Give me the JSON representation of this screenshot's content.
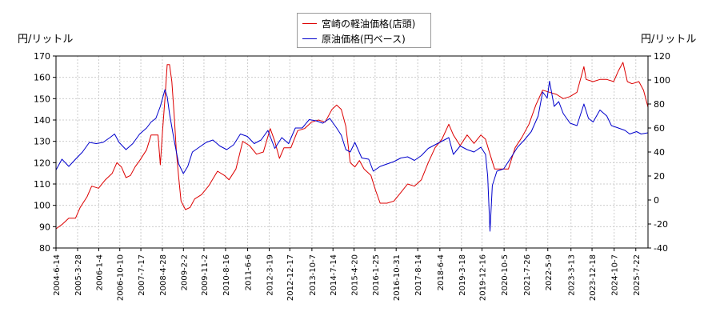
{
  "chart_data": {
    "type": "line",
    "left_unit": "円/リットル",
    "right_unit": "円/リットル",
    "y_left_range": [
      80,
      170
    ],
    "y_left_ticks": [
      "80",
      "90",
      "100",
      "110",
      "120",
      "130",
      "140",
      "150",
      "160",
      "170"
    ],
    "y_right_range": [
      -40,
      120
    ],
    "y_right_ticks": [
      "-40",
      "-20",
      "0",
      "20",
      "40",
      "60",
      "80",
      "100",
      "120"
    ],
    "x_range": [
      "2004-06-14",
      "2025-12-31"
    ],
    "x_tick_labels": [
      "2004-6-14",
      "2005-3-28",
      "2006-1-4",
      "2006-10-10",
      "2007-7-17",
      "2008-4-28",
      "2009-2-2",
      "2009-11-2",
      "2010-8-16",
      "2011-6-6",
      "2012-3-19",
      "2012-12-17",
      "2013-10-7",
      "2014-7-14",
      "2015-4-20",
      "2016-1-25",
      "2016-10-31",
      "2017-8-14",
      "2018-6-4",
      "2019-3-18",
      "2019-12-16",
      "2020-10-5",
      "2021-7-26",
      "2022-5-9",
      "2023-3-13",
      "2023-12-18",
      "2024-10-7",
      "2025-7-22"
    ],
    "grid": true,
    "legend_position": "top-center",
    "series": [
      {
        "name": "宮崎の軽油価格(店頭)",
        "axis": "left",
        "color": "#dd0000",
        "points": [
          [
            "2004-06-14",
            89
          ],
          [
            "2004-09-01",
            91
          ],
          [
            "2004-12-01",
            94
          ],
          [
            "2005-03-01",
            94
          ],
          [
            "2005-05-01",
            99
          ],
          [
            "2005-08-01",
            104
          ],
          [
            "2005-10-01",
            109
          ],
          [
            "2006-01-01",
            108
          ],
          [
            "2006-04-01",
            112
          ],
          [
            "2006-07-01",
            115
          ],
          [
            "2006-09-01",
            120
          ],
          [
            "2006-11-01",
            118
          ],
          [
            "2007-01-01",
            113
          ],
          [
            "2007-03-01",
            114
          ],
          [
            "2007-05-01",
            118
          ],
          [
            "2007-07-01",
            121
          ],
          [
            "2007-10-01",
            126
          ],
          [
            "2007-12-01",
            133
          ],
          [
            "2008-03-01",
            133
          ],
          [
            "2008-04-01",
            119
          ],
          [
            "2008-05-01",
            135
          ],
          [
            "2008-06-01",
            150
          ],
          [
            "2008-07-01",
            166
          ],
          [
            "2008-08-01",
            166
          ],
          [
            "2008-09-01",
            158
          ],
          [
            "2008-10-01",
            143
          ],
          [
            "2008-11-01",
            125
          ],
          [
            "2008-12-01",
            113
          ],
          [
            "2009-01-01",
            102
          ],
          [
            "2009-03-01",
            98
          ],
          [
            "2009-05-01",
            99
          ],
          [
            "2009-07-01",
            103
          ],
          [
            "2009-10-01",
            105
          ],
          [
            "2010-01-01",
            109
          ],
          [
            "2010-05-01",
            116
          ],
          [
            "2010-08-01",
            114
          ],
          [
            "2010-10-01",
            112
          ],
          [
            "2011-01-01",
            117
          ],
          [
            "2011-04-01",
            130
          ],
          [
            "2011-07-01",
            128
          ],
          [
            "2011-10-01",
            124
          ],
          [
            "2012-01-01",
            125
          ],
          [
            "2012-04-01",
            136
          ],
          [
            "2012-06-01",
            130
          ],
          [
            "2012-08-01",
            122
          ],
          [
            "2012-10-01",
            127
          ],
          [
            "2013-01-01",
            127
          ],
          [
            "2013-04-01",
            135
          ],
          [
            "2013-07-01",
            136
          ],
          [
            "2013-10-01",
            139
          ],
          [
            "2014-01-01",
            140
          ],
          [
            "2014-04-01",
            139
          ],
          [
            "2014-07-01",
            145
          ],
          [
            "2014-09-01",
            147
          ],
          [
            "2014-11-01",
            145
          ],
          [
            "2015-01-01",
            137
          ],
          [
            "2015-03-01",
            120
          ],
          [
            "2015-05-01",
            118
          ],
          [
            "2015-07-01",
            121
          ],
          [
            "2015-09-01",
            117
          ],
          [
            "2015-12-01",
            114
          ],
          [
            "2016-02-01",
            107
          ],
          [
            "2016-04-01",
            101
          ],
          [
            "2016-07-01",
            101
          ],
          [
            "2016-10-01",
            102
          ],
          [
            "2017-01-01",
            106
          ],
          [
            "2017-04-01",
            110
          ],
          [
            "2017-07-01",
            109
          ],
          [
            "2017-10-01",
            112
          ],
          [
            "2018-01-01",
            120
          ],
          [
            "2018-04-01",
            127
          ],
          [
            "2018-07-01",
            131
          ],
          [
            "2018-10-01",
            138
          ],
          [
            "2018-12-01",
            133
          ],
          [
            "2019-03-01",
            128
          ],
          [
            "2019-06-01",
            133
          ],
          [
            "2019-09-01",
            129
          ],
          [
            "2019-12-01",
            133
          ],
          [
            "2020-02-01",
            131
          ],
          [
            "2020-04-01",
            124
          ],
          [
            "2020-06-01",
            117
          ],
          [
            "2020-09-01",
            117
          ],
          [
            "2020-12-01",
            117
          ],
          [
            "2021-03-01",
            127
          ],
          [
            "2021-06-01",
            132
          ],
          [
            "2021-09-01",
            138
          ],
          [
            "2021-12-01",
            147
          ],
          [
            "2022-03-01",
            154
          ],
          [
            "2022-06-01",
            153
          ],
          [
            "2022-09-01",
            152
          ],
          [
            "2022-12-01",
            150
          ],
          [
            "2023-03-01",
            151
          ],
          [
            "2023-06-01",
            153
          ],
          [
            "2023-09-01",
            165
          ],
          [
            "2023-10-01",
            159
          ],
          [
            "2024-01-01",
            158
          ],
          [
            "2024-04-01",
            159
          ],
          [
            "2024-07-01",
            159
          ],
          [
            "2024-10-01",
            158
          ],
          [
            "2024-12-01",
            163
          ],
          [
            "2025-02-01",
            167
          ],
          [
            "2025-04-01",
            158
          ],
          [
            "2025-06-01",
            157
          ],
          [
            "2025-09-01",
            158
          ],
          [
            "2025-11-01",
            154
          ],
          [
            "2025-12-31",
            146
          ]
        ]
      },
      {
        "name": "原油価格(円ベース)",
        "axis": "right",
        "color": "#0000cc",
        "points": [
          [
            "2004-06-14",
            25
          ],
          [
            "2004-09-01",
            34
          ],
          [
            "2004-12-01",
            28
          ],
          [
            "2005-03-01",
            34
          ],
          [
            "2005-06-01",
            40
          ],
          [
            "2005-09-01",
            48
          ],
          [
            "2005-12-01",
            47
          ],
          [
            "2006-03-01",
            48
          ],
          [
            "2006-06-01",
            52
          ],
          [
            "2006-08-01",
            55
          ],
          [
            "2006-10-01",
            48
          ],
          [
            "2006-12-01",
            44
          ],
          [
            "2007-01-01",
            42
          ],
          [
            "2007-04-01",
            47
          ],
          [
            "2007-07-01",
            55
          ],
          [
            "2007-10-01",
            60
          ],
          [
            "2007-12-01",
            65
          ],
          [
            "2008-02-01",
            68
          ],
          [
            "2008-04-01",
            78
          ],
          [
            "2008-06-01",
            92
          ],
          [
            "2008-07-01",
            86
          ],
          [
            "2008-08-01",
            72
          ],
          [
            "2008-10-01",
            50
          ],
          [
            "2008-12-01",
            30
          ],
          [
            "2009-02-01",
            22
          ],
          [
            "2009-04-01",
            28
          ],
          [
            "2009-06-01",
            40
          ],
          [
            "2009-09-01",
            44
          ],
          [
            "2009-12-01",
            48
          ],
          [
            "2010-03-01",
            50
          ],
          [
            "2010-06-01",
            45
          ],
          [
            "2010-09-01",
            42
          ],
          [
            "2010-12-01",
            46
          ],
          [
            "2011-03-01",
            55
          ],
          [
            "2011-06-01",
            53
          ],
          [
            "2011-09-01",
            47
          ],
          [
            "2011-12-01",
            50
          ],
          [
            "2012-03-01",
            58
          ],
          [
            "2012-06-01",
            43
          ],
          [
            "2012-09-01",
            52
          ],
          [
            "2012-12-01",
            47
          ],
          [
            "2013-03-01",
            60
          ],
          [
            "2013-06-01",
            60
          ],
          [
            "2013-09-01",
            67
          ],
          [
            "2013-12-01",
            66
          ],
          [
            "2014-03-01",
            64
          ],
          [
            "2014-06-01",
            68
          ],
          [
            "2014-09-01",
            60
          ],
          [
            "2014-11-01",
            54
          ],
          [
            "2015-01-01",
            42
          ],
          [
            "2015-03-01",
            40
          ],
          [
            "2015-05-01",
            48
          ],
          [
            "2015-08-01",
            35
          ],
          [
            "2015-11-01",
            34
          ],
          [
            "2016-01-01",
            24
          ],
          [
            "2016-04-01",
            28
          ],
          [
            "2016-07-01",
            30
          ],
          [
            "2016-10-01",
            32
          ],
          [
            "2017-01-01",
            35
          ],
          [
            "2017-04-01",
            36
          ],
          [
            "2017-07-01",
            33
          ],
          [
            "2017-10-01",
            37
          ],
          [
            "2018-01-01",
            43
          ],
          [
            "2018-04-01",
            46
          ],
          [
            "2018-07-01",
            49
          ],
          [
            "2018-10-01",
            52
          ],
          [
            "2018-12-01",
            38
          ],
          [
            "2019-03-01",
            45
          ],
          [
            "2019-06-01",
            42
          ],
          [
            "2019-09-01",
            40
          ],
          [
            "2019-12-01",
            44
          ],
          [
            "2020-02-01",
            38
          ],
          [
            "2020-03-01",
            20
          ],
          [
            "2020-04-01",
            -26
          ],
          [
            "2020-05-01",
            12
          ],
          [
            "2020-07-01",
            24
          ],
          [
            "2020-10-01",
            26
          ],
          [
            "2021-01-01",
            35
          ],
          [
            "2021-04-01",
            44
          ],
          [
            "2021-07-01",
            50
          ],
          [
            "2021-10-01",
            57
          ],
          [
            "2022-01-01",
            70
          ],
          [
            "2022-03-01",
            90
          ],
          [
            "2022-05-01",
            85
          ],
          [
            "2022-06-01",
            99
          ],
          [
            "2022-08-01",
            78
          ],
          [
            "2022-10-01",
            82
          ],
          [
            "2022-12-01",
            72
          ],
          [
            "2023-03-01",
            64
          ],
          [
            "2023-06-01",
            62
          ],
          [
            "2023-09-01",
            80
          ],
          [
            "2023-11-01",
            68
          ],
          [
            "2024-01-01",
            65
          ],
          [
            "2024-04-01",
            75
          ],
          [
            "2024-07-01",
            70
          ],
          [
            "2024-09-01",
            62
          ],
          [
            "2024-12-01",
            60
          ],
          [
            "2025-03-01",
            58
          ],
          [
            "2025-05-01",
            55
          ],
          [
            "2025-08-01",
            57
          ],
          [
            "2025-10-01",
            55
          ],
          [
            "2025-12-31",
            56
          ]
        ]
      }
    ]
  }
}
